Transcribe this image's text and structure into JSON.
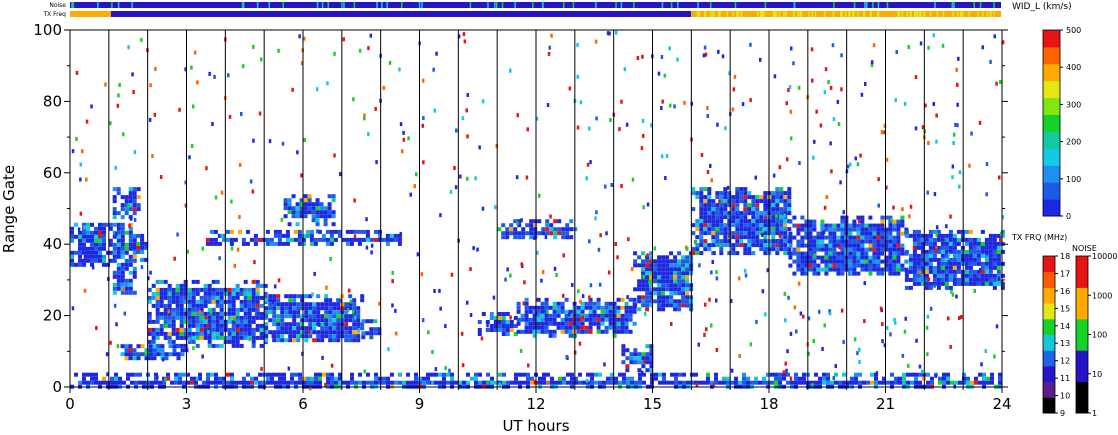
{
  "chart_data": {
    "type": "heatmap",
    "xlabel": "UT hours",
    "ylabel": "Range Gate",
    "xlim": [
      0,
      24
    ],
    "ylim": [
      0,
      100
    ],
    "x_ticks": [
      0,
      3,
      6,
      9,
      12,
      15,
      18,
      21,
      24
    ],
    "y_ticks": [
      0,
      20,
      40,
      60,
      80,
      100
    ],
    "hour_gridlines": true,
    "strip_labels": {
      "noise": "Noise",
      "txfreq": "TX Freq"
    },
    "colorbars": {
      "width": {
        "title": "WID_L (km/s)",
        "ticks": [
          0,
          100,
          200,
          300,
          400,
          500
        ],
        "colors": [
          "#1e28e0",
          "#1e5ae6",
          "#1e90f0",
          "#14c8e6",
          "#14c8a0",
          "#14d228",
          "#82e614",
          "#e6e614",
          "#ffaa00",
          "#ff6400",
          "#e61414"
        ]
      },
      "txfreq": {
        "title": "TX FRQ (MHz)",
        "ticks": [
          9,
          10,
          11,
          12,
          13,
          14,
          15,
          16,
          17,
          18
        ],
        "colors": [
          "#000000",
          "#5a1e8c",
          "#2814c8",
          "#1e64e6",
          "#14c8dc",
          "#14d228",
          "#e6e614",
          "#ffaa00",
          "#ff5a00",
          "#e61414"
        ]
      },
      "noise": {
        "title": "NOISE",
        "ticks": [
          1,
          10,
          100,
          1000,
          10000
        ],
        "colors": [
          "#000000",
          "#2814c8",
          "#14d228",
          "#ffaa00",
          "#e61414"
        ]
      }
    },
    "bands": [
      {
        "x0": 0.0,
        "x1": 1.0,
        "y0": 34,
        "y1": 46
      },
      {
        "x0": 1.0,
        "x1": 1.7,
        "y0": 26,
        "y1": 46
      },
      {
        "x0": 1.1,
        "x1": 1.8,
        "y0": 48,
        "y1": 56
      },
      {
        "x0": 1.6,
        "x1": 2.0,
        "y0": 36,
        "y1": 44
      },
      {
        "x0": 2.0,
        "x1": 5.0,
        "y0": 12,
        "y1": 30
      },
      {
        "x0": 5.0,
        "x1": 7.5,
        "y0": 13,
        "y1": 26
      },
      {
        "x0": 7.5,
        "x1": 8.0,
        "y0": 14,
        "y1": 19
      },
      {
        "x0": 1.3,
        "x1": 3.0,
        "y0": 8,
        "y1": 12
      },
      {
        "x0": 3.5,
        "x1": 8.5,
        "y0": 40,
        "y1": 44
      },
      {
        "x0": 5.5,
        "x1": 6.8,
        "y0": 46,
        "y1": 54
      },
      {
        "x0": 10.5,
        "x1": 11.5,
        "y0": 15,
        "y1": 21
      },
      {
        "x0": 11.5,
        "x1": 14.5,
        "y0": 14,
        "y1": 25
      },
      {
        "x0": 14.2,
        "x1": 15.0,
        "y0": 5,
        "y1": 12
      },
      {
        "x0": 14.5,
        "x1": 16.0,
        "y0": 22,
        "y1": 38
      },
      {
        "x0": 11.0,
        "x1": 13.0,
        "y0": 42,
        "y1": 47
      },
      {
        "x0": 16.0,
        "x1": 18.5,
        "y0": 38,
        "y1": 56
      },
      {
        "x0": 18.5,
        "x1": 21.5,
        "y0": 32,
        "y1": 48
      },
      {
        "x0": 21.5,
        "x1": 24.0,
        "y0": 28,
        "y1": 44
      },
      {
        "x0": 0.0,
        "x1": 24.0,
        "y0": 0,
        "y1": 4
      }
    ]
  }
}
